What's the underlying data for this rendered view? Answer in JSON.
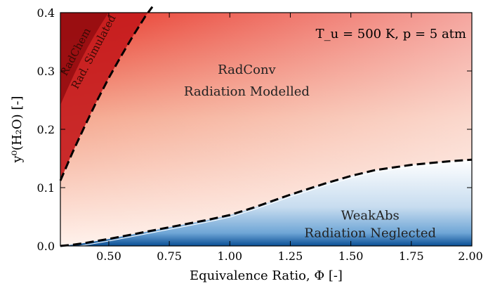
{
  "chart_data": {
    "type": "heatmap",
    "title": "",
    "xlabel": "Equivalence Ratio, Φ [-]",
    "ylabel": "y⁰(H₂O) [-]",
    "xlim": [
      0.3,
      2.0
    ],
    "ylim": [
      0.0,
      0.4
    ],
    "x_ticks": [
      "0.50",
      "0.75",
      "1.00",
      "1.25",
      "1.50",
      "1.75",
      "2.00"
    ],
    "y_ticks": [
      "0.0",
      "0.1",
      "0.2",
      "0.3",
      "0.4"
    ],
    "x_tick_values": [
      0.5,
      0.75,
      1.0,
      1.25,
      1.5,
      1.75,
      2.0
    ],
    "y_tick_values": [
      0.0,
      0.1,
      0.2,
      0.3,
      0.4
    ],
    "conditions_label": "T_u = 500 K, p = 5 atm",
    "colors": {
      "hot": "#8b0a0e",
      "mid": "#e8392a",
      "light": "#fde3d8",
      "cold": "#0a4f95",
      "cold_light": "#d8e8f5"
    },
    "boundaries": [
      {
        "name": "RadChem / RadConv boundary",
        "style": "dashed",
        "x": [
          0.3,
          0.35,
          0.4,
          0.45,
          0.5,
          0.55,
          0.6,
          0.65,
          0.68
        ],
        "y": [
          0.112,
          0.16,
          0.205,
          0.248,
          0.288,
          0.325,
          0.36,
          0.393,
          0.41
        ]
      },
      {
        "name": "RadConv / WeakAbs boundary",
        "style": "dashed",
        "x": [
          0.3,
          0.35,
          0.4,
          0.5,
          0.6,
          0.75,
          0.9,
          1.0,
          1.1,
          1.25,
          1.4,
          1.5,
          1.6,
          1.75,
          1.9,
          2.0
        ],
        "y": [
          0.0,
          0.002,
          0.005,
          0.012,
          0.02,
          0.032,
          0.044,
          0.053,
          0.066,
          0.088,
          0.108,
          0.12,
          0.13,
          0.139,
          0.145,
          0.148
        ]
      }
    ],
    "regions": [
      {
        "id": "radchem",
        "line1": "RadChem",
        "line2": "Rad. Simulated"
      },
      {
        "id": "radconv",
        "line1": "RadConv",
        "line2": "Radiation Modelled"
      },
      {
        "id": "weakabs",
        "line1": "WeakAbs",
        "line2": "Radiation Neglected"
      }
    ]
  }
}
